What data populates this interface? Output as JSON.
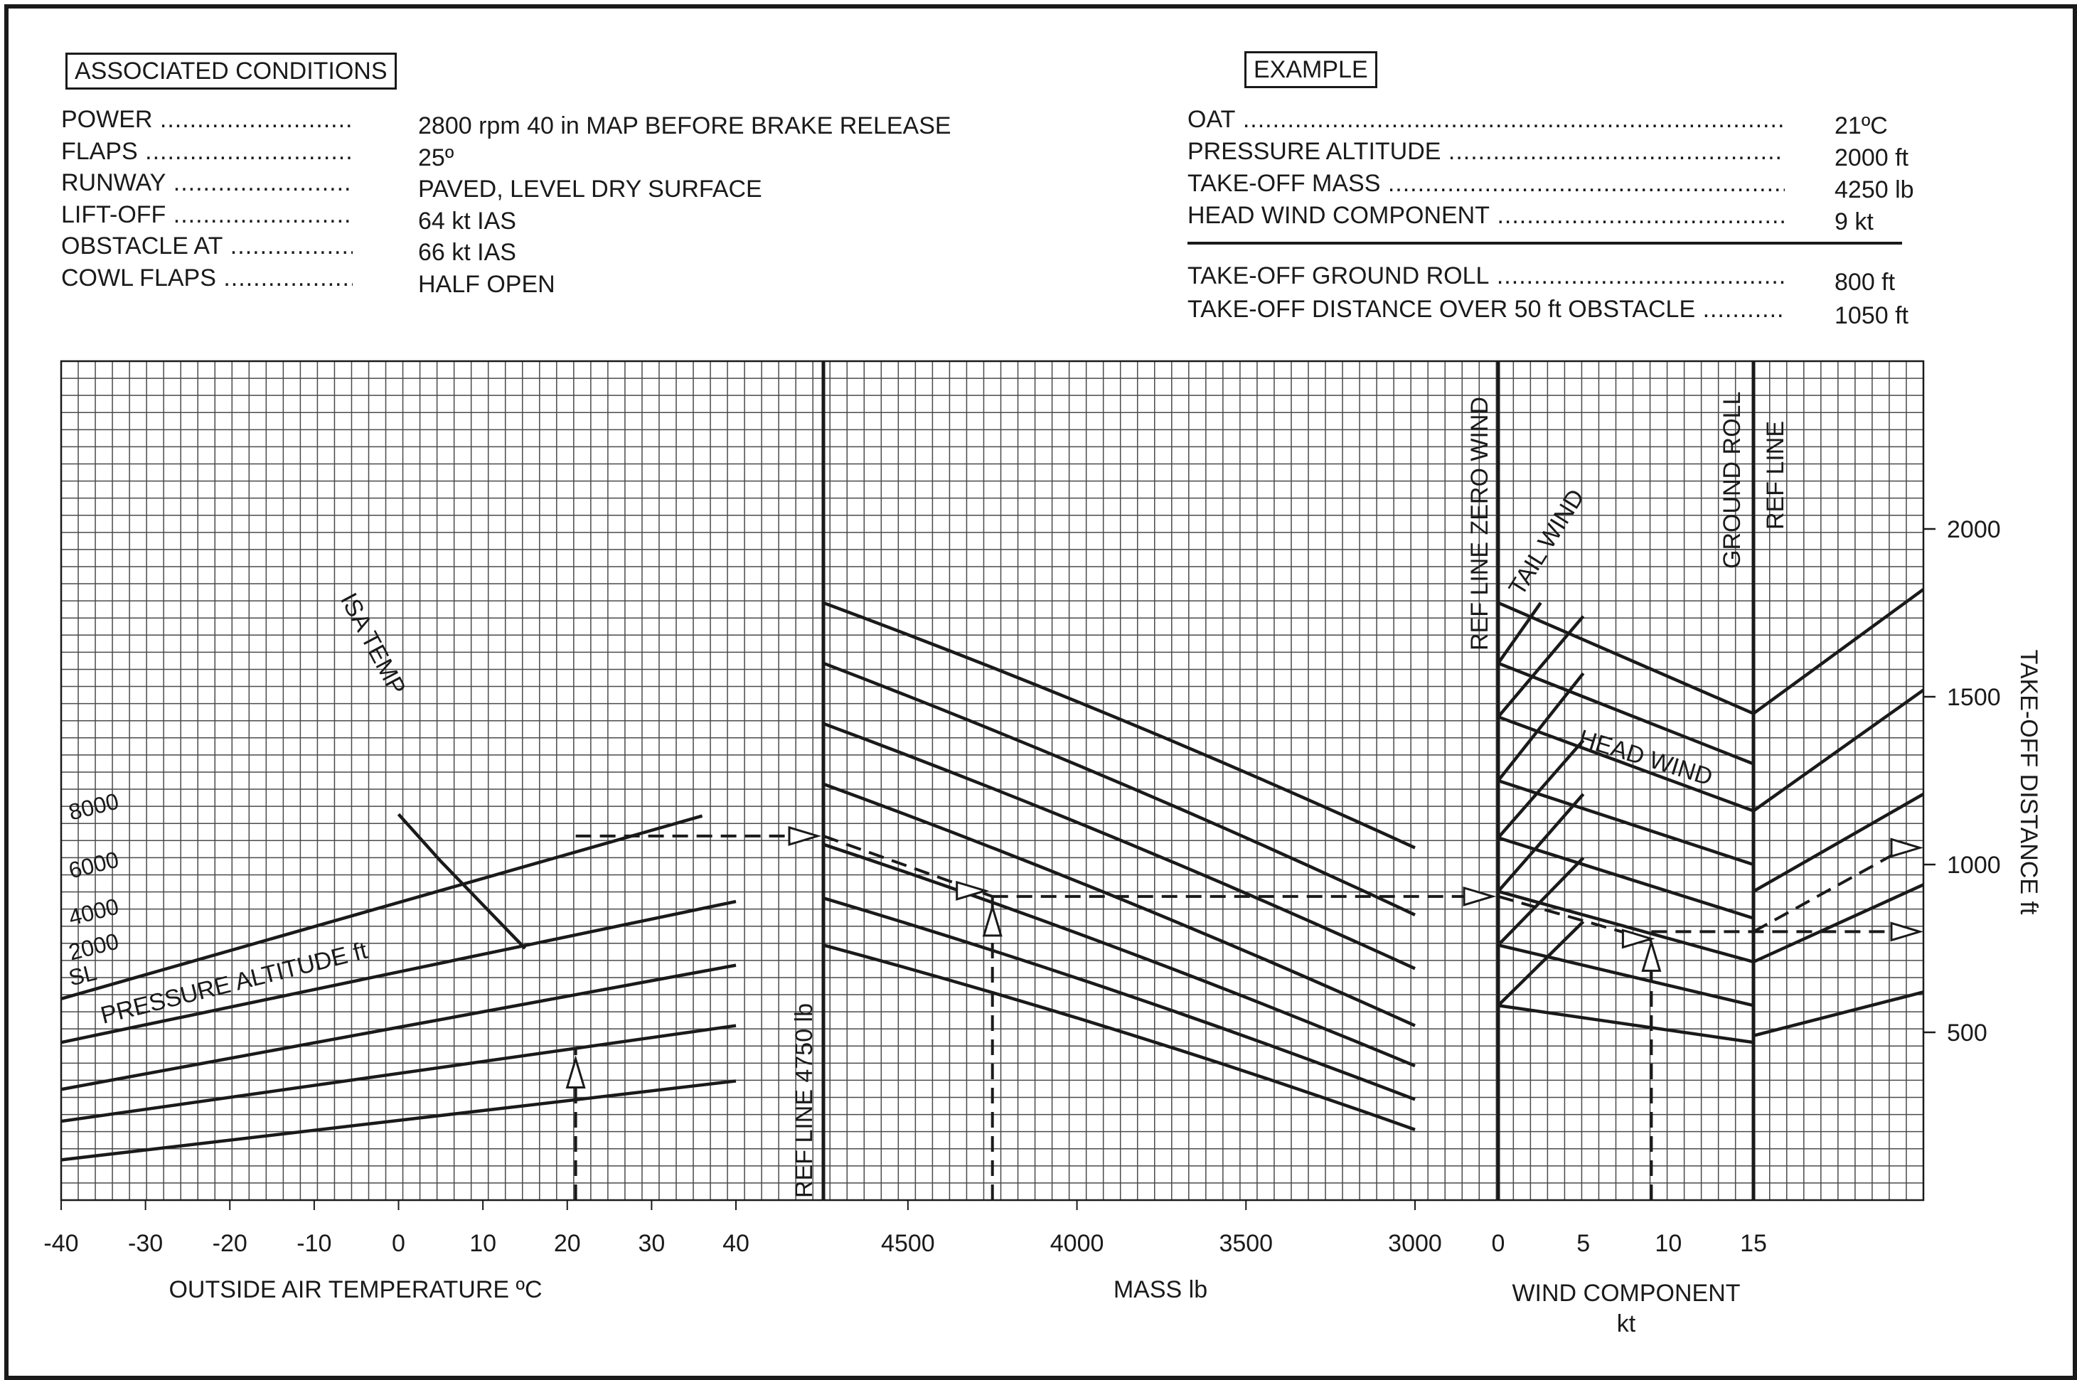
{
  "associated_conditions": {
    "title": "ASSOCIATED CONDITIONS",
    "rows": [
      {
        "label": "POWER",
        "value": "2800 rpm  40 in MAP BEFORE BRAKE RELEASE"
      },
      {
        "label": "FLAPS",
        "value": "25º"
      },
      {
        "label": "RUNWAY",
        "value": "PAVED, LEVEL DRY SURFACE"
      },
      {
        "label": "LIFT-OFF",
        "value": "64 kt IAS"
      },
      {
        "label": "OBSTACLE AT",
        "value": "66 kt IAS"
      },
      {
        "label": "COWL FLAPS",
        "value": "HALF OPEN"
      }
    ]
  },
  "example": {
    "title": "EXAMPLE",
    "inputs": [
      {
        "label": "OAT",
        "value": "21ºC"
      },
      {
        "label": "PRESSURE ALTITUDE",
        "value": "2000 ft"
      },
      {
        "label": "TAKE-OFF MASS",
        "value": "4250 lb"
      },
      {
        "label": "HEAD WIND COMPONENT",
        "value": "9 kt"
      }
    ],
    "results": [
      {
        "label": "TAKE-OFF  GROUND ROLL",
        "value": "800 ft"
      },
      {
        "label": "TAKE-OFF DISTANCE OVER 50 ft OBSTACLE",
        "value": "1050 ft"
      }
    ]
  },
  "chart_data": {
    "type": "line",
    "panels": {
      "temperature": {
        "xlabel": "OUTSIDE AIR TEMPERATURE  ºC",
        "xlim": [
          -40,
          40
        ],
        "ticks": [
          "-40",
          "-30",
          "-20",
          "-10",
          "0",
          "10",
          "20",
          "30",
          "40"
        ],
        "tick_values": [
          -40,
          -30,
          -20,
          -10,
          0,
          10,
          20,
          30,
          40
        ],
        "curve_group_label": "PRESSURE ALTITUDE  ft",
        "isa_label": "ISA TEMP",
        "series": [
          {
            "name": "SL",
            "x": [
              -40,
              40
            ],
            "y": [
              120,
              355
            ]
          },
          {
            "name": "2000",
            "x": [
              -40,
              40
            ],
            "y": [
              235,
              520
            ]
          },
          {
            "name": "4000",
            "x": [
              -40,
              40
            ],
            "y": [
              330,
              700
            ]
          },
          {
            "name": "6000",
            "x": [
              -40,
              40
            ],
            "y": [
              470,
              890
            ]
          },
          {
            "name": "8000",
            "x": [
              -40,
              36
            ],
            "y": [
              600,
              1145
            ]
          }
        ],
        "isa_curve": {
          "x": [
            0,
            5,
            10,
            15
          ],
          "y": [
            1150,
            1010,
            880,
            750
          ]
        }
      },
      "mass": {
        "xlabel": "MASS   lb",
        "xlim": [
          4750,
          3000
        ],
        "ticks": [
          "4500",
          "4000",
          "3500",
          "3000"
        ],
        "tick_values": [
          4500,
          4000,
          3500,
          3000
        ],
        "ref_label": "REF LINE  4750 lb",
        "series": [
          {
            "x": [
              4750,
              3000
            ],
            "y": [
              1780,
              1050
            ]
          },
          {
            "x": [
              4750,
              3000
            ],
            "y": [
              1600,
              850
            ]
          },
          {
            "x": [
              4750,
              3000
            ],
            "y": [
              1420,
              690
            ]
          },
          {
            "x": [
              4750,
              3000
            ],
            "y": [
              1240,
              520
            ]
          },
          {
            "x": [
              4750,
              3000
            ],
            "y": [
              1060,
              400
            ]
          },
          {
            "x": [
              4750,
              3000
            ],
            "y": [
              900,
              300
            ]
          },
          {
            "x": [
              4750,
              3000
            ],
            "y": [
              760,
              210
            ]
          }
        ]
      },
      "wind": {
        "xlabel": "WIND COMPONENT",
        "xlabel2": "kt",
        "xlim": [
          0,
          15
        ],
        "ticks": [
          "0",
          "5",
          "10",
          "15"
        ],
        "tick_values": [
          0,
          5,
          10,
          15
        ],
        "ref_zero_label": "REF LINE ZERO WIND",
        "tail_label": "TAIL WIND",
        "head_label": "HEAD WIND",
        "head_series": [
          {
            "x": [
              0,
              15
            ],
            "y": [
              1780,
              1450
            ]
          },
          {
            "x": [
              0,
              15
            ],
            "y": [
              1600,
              1300
            ]
          },
          {
            "x": [
              0,
              15
            ],
            "y": [
              1440,
              1160
            ]
          },
          {
            "x": [
              0,
              15
            ],
            "y": [
              1250,
              1000
            ]
          },
          {
            "x": [
              0,
              15
            ],
            "y": [
              1080,
              840
            ]
          },
          {
            "x": [
              0,
              15
            ],
            "y": [
              920,
              710
            ]
          },
          {
            "x": [
              0,
              15
            ],
            "y": [
              760,
              580
            ]
          },
          {
            "x": [
              0,
              15
            ],
            "y": [
              580,
              470
            ]
          }
        ],
        "tail_series": [
          {
            "x": [
              0,
              2.5
            ],
            "y": [
              1600,
              1780
            ]
          },
          {
            "x": [
              0,
              5
            ],
            "y": [
              1440,
              1740
            ]
          },
          {
            "x": [
              0,
              5
            ],
            "y": [
              1250,
              1570
            ]
          },
          {
            "x": [
              0,
              5
            ],
            "y": [
              1080,
              1370
            ]
          },
          {
            "x": [
              0,
              5
            ],
            "y": [
              920,
              1210
            ]
          },
          {
            "x": [
              0,
              5
            ],
            "y": [
              760,
              1020
            ]
          },
          {
            "x": [
              0,
              5
            ],
            "y": [
              580,
              830
            ]
          }
        ]
      },
      "obstacle": {
        "ground_roll_label": "GROUND ROLL",
        "ref_label": "REF LINE",
        "series": [
          {
            "x": [
              0,
              1
            ],
            "y": [
              1450,
              1820
            ]
          },
          {
            "x": [
              0,
              1
            ],
            "y": [
              1160,
              1520
            ]
          },
          {
            "x": [
              0,
              1
            ],
            "y": [
              920,
              1210
            ]
          },
          {
            "x": [
              0,
              1
            ],
            "y": [
              710,
              940
            ]
          },
          {
            "x": [
              0,
              1
            ],
            "y": [
              490,
              620
            ]
          }
        ]
      }
    },
    "y_axis": {
      "label": "TAKE-OFF DISTANCE  ft",
      "ticks": [
        "500",
        "1000",
        "1500",
        "2000"
      ],
      "tick_values": [
        500,
        1000,
        1500,
        2000
      ],
      "ylim": [
        0,
        2500
      ]
    },
    "example_path": {
      "oat": 21,
      "pressure_altitude": 2000,
      "mass": 4250,
      "head_wind": 9,
      "ground_roll": 800,
      "obstacle_distance": 1050
    }
  }
}
